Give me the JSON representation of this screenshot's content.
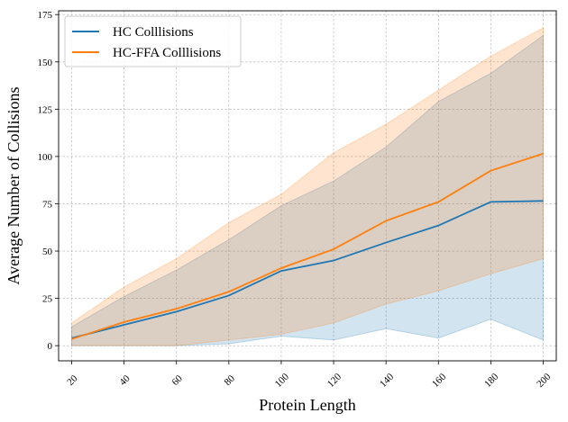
{
  "chart_data": {
    "type": "line",
    "title": "",
    "xlabel": "Protein Length",
    "ylabel": "Average Number of Collisions",
    "x": [
      20,
      40,
      60,
      80,
      100,
      120,
      140,
      160,
      180,
      200
    ],
    "x_ticks": [
      20,
      40,
      60,
      80,
      100,
      120,
      140,
      160,
      180,
      200
    ],
    "y_ticks": [
      0,
      25,
      50,
      75,
      100,
      125,
      150,
      175
    ],
    "xlim": [
      15,
      205
    ],
    "ylim": [
      -8,
      177
    ],
    "grid": true,
    "legend_position": "top-left",
    "series": [
      {
        "name": "HC Colllisions",
        "color": "#1f77b4",
        "values": [
          4,
          11,
          18,
          26.5,
          39.5,
          45,
          54.5,
          63.5,
          76,
          76.5
        ],
        "band_upper": [
          10,
          26,
          40,
          56,
          74,
          87,
          105,
          129,
          144,
          164
        ],
        "band_lower": [
          0,
          0,
          0,
          1,
          5,
          3,
          9,
          4,
          14,
          3
        ]
      },
      {
        "name": "HC-FFA Colllisions",
        "color": "#ff7f0e",
        "values": [
          3.5,
          12.5,
          19.5,
          28.5,
          41,
          51,
          66,
          76,
          92.5,
          101.5
        ],
        "band_upper": [
          12,
          31,
          46,
          65,
          80,
          102,
          117,
          135,
          153,
          168
        ],
        "band_lower": [
          0,
          0,
          0,
          3,
          6,
          12,
          22,
          29,
          38,
          46
        ]
      }
    ]
  }
}
